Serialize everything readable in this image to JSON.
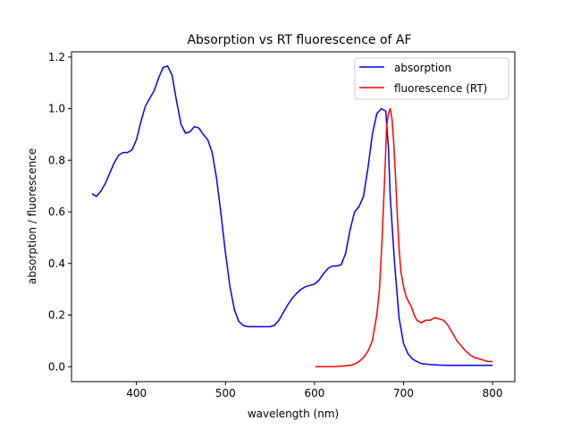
{
  "chart_data": {
    "type": "line",
    "title": "Absorption vs RT fluorescence of AF",
    "xlabel": "wavelength (nm)",
    "ylabel": "absorption / fluorescence",
    "xlim": [
      327,
      825
    ],
    "ylim": [
      -0.058,
      1.22
    ],
    "xticks": [
      400,
      500,
      600,
      700,
      800
    ],
    "yticks": [
      0.0,
      0.2,
      0.4,
      0.6,
      0.8,
      1.0,
      1.2
    ],
    "grid": false,
    "legend_position": "top-right",
    "series": [
      {
        "name": "absorption",
        "color": "#0000ff",
        "x": [
          350,
          355,
          360,
          365,
          370,
          375,
          380,
          385,
          390,
          395,
          400,
          405,
          410,
          415,
          420,
          425,
          430,
          435,
          440,
          445,
          450,
          455,
          460,
          465,
          470,
          475,
          480,
          485,
          490,
          495,
          500,
          505,
          510,
          515,
          520,
          525,
          530,
          535,
          540,
          545,
          550,
          555,
          560,
          565,
          570,
          575,
          580,
          585,
          590,
          595,
          600,
          605,
          610,
          615,
          620,
          625,
          630,
          635,
          640,
          645,
          650,
          655,
          660,
          665,
          670,
          675,
          680,
          683,
          685,
          690,
          695,
          700,
          705,
          710,
          715,
          720,
          730,
          740,
          750,
          760,
          770,
          780,
          790,
          800
        ],
        "y": [
          0.67,
          0.66,
          0.68,
          0.71,
          0.75,
          0.79,
          0.82,
          0.83,
          0.83,
          0.84,
          0.88,
          0.95,
          1.01,
          1.04,
          1.07,
          1.12,
          1.16,
          1.165,
          1.13,
          1.03,
          0.94,
          0.905,
          0.91,
          0.93,
          0.925,
          0.9,
          0.88,
          0.83,
          0.73,
          0.59,
          0.44,
          0.31,
          0.22,
          0.175,
          0.16,
          0.155,
          0.155,
          0.155,
          0.155,
          0.155,
          0.155,
          0.16,
          0.18,
          0.21,
          0.24,
          0.265,
          0.285,
          0.3,
          0.31,
          0.315,
          0.32,
          0.335,
          0.36,
          0.38,
          0.39,
          0.39,
          0.395,
          0.44,
          0.53,
          0.6,
          0.62,
          0.66,
          0.77,
          0.9,
          0.98,
          1.0,
          0.99,
          0.85,
          0.66,
          0.4,
          0.19,
          0.09,
          0.05,
          0.03,
          0.02,
          0.012,
          0.008,
          0.006,
          0.005,
          0.005,
          0.005,
          0.005,
          0.005,
          0.005
        ]
      },
      {
        "name": "fluorescence (RT)",
        "color": "#ff0000",
        "x": [
          601,
          610,
          620,
          630,
          640,
          645,
          650,
          655,
          660,
          665,
          670,
          673,
          676,
          679,
          681,
          683,
          685,
          687,
          689,
          691,
          693,
          695,
          697,
          700,
          703,
          706,
          709,
          712,
          715,
          720,
          725,
          730,
          735,
          740,
          745,
          750,
          755,
          760,
          765,
          770,
          775,
          780,
          785,
          790,
          795,
          800
        ],
        "y": [
          0.0,
          0.0,
          0.0,
          0.002,
          0.005,
          0.01,
          0.02,
          0.035,
          0.06,
          0.1,
          0.2,
          0.3,
          0.5,
          0.75,
          0.93,
          0.98,
          1.0,
          0.96,
          0.87,
          0.74,
          0.59,
          0.46,
          0.37,
          0.31,
          0.27,
          0.25,
          0.23,
          0.2,
          0.18,
          0.17,
          0.18,
          0.18,
          0.19,
          0.185,
          0.18,
          0.16,
          0.13,
          0.1,
          0.08,
          0.06,
          0.045,
          0.035,
          0.03,
          0.025,
          0.02,
          0.02
        ]
      }
    ]
  }
}
